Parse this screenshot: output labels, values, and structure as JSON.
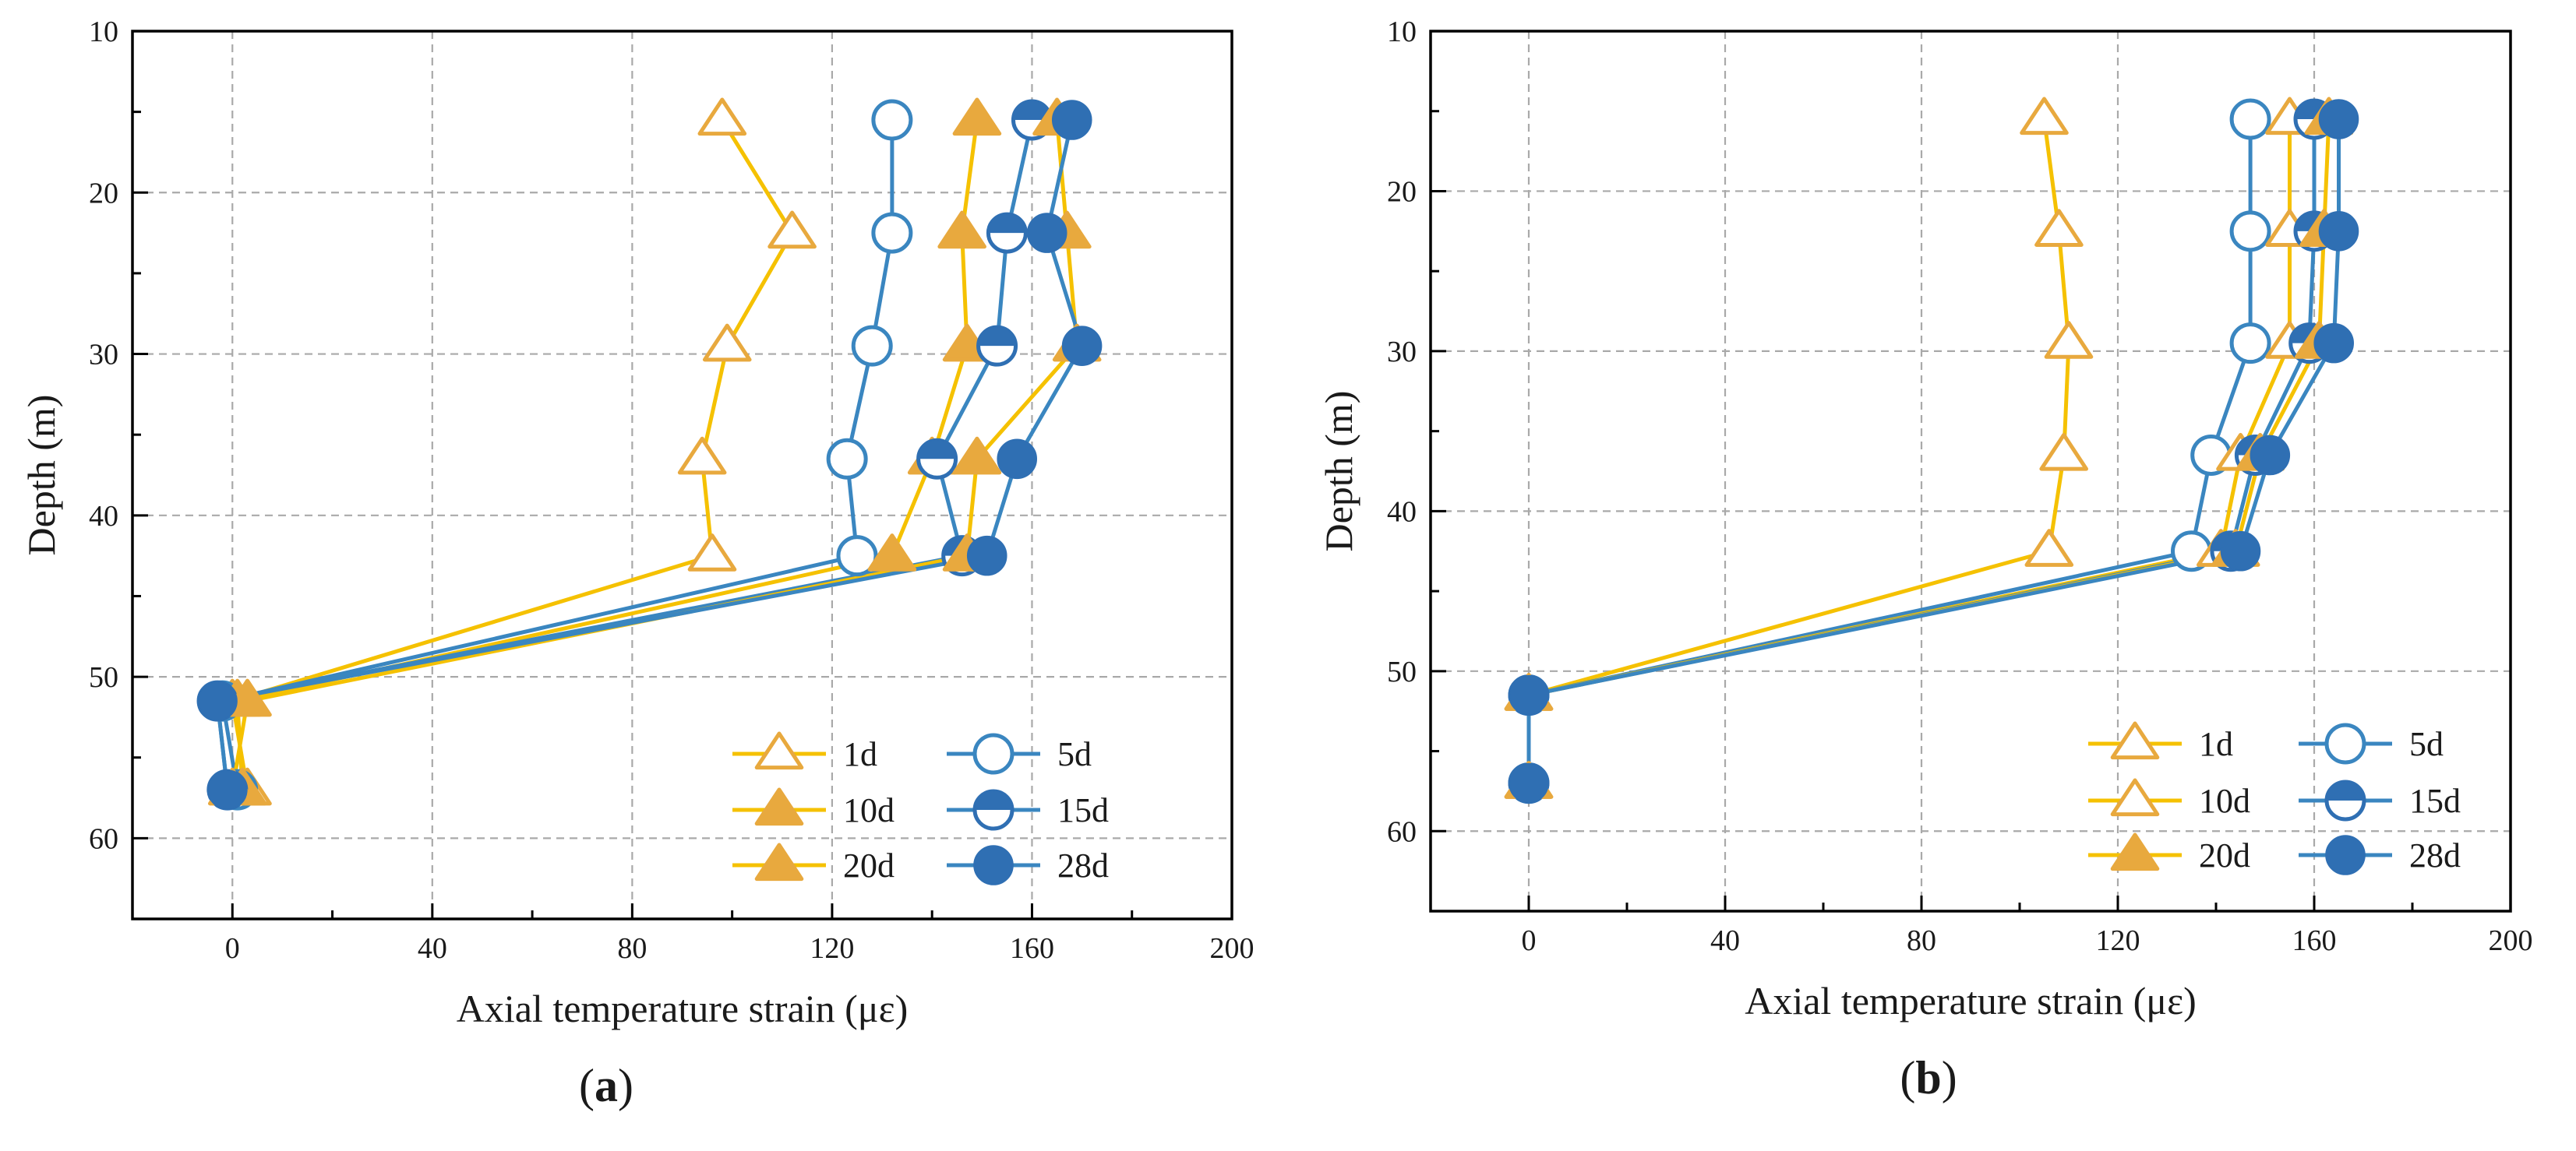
{
  "colors": {
    "yellow": "#f5c100",
    "orange": "#e8a93e",
    "blue": "#3a86c0",
    "dot_blue": "#2f6fb3",
    "grid": "#a9a9a9",
    "axis": "#000000"
  },
  "chart_data": [
    {
      "type": "line",
      "panel_label": "a",
      "xlabel": "Axial temperature strain (με)",
      "ylabel": "Depth (m)",
      "xlim": [
        -20,
        200
      ],
      "ylim": [
        10,
        65
      ],
      "y_inverted": true,
      "x_ticks": [
        "0",
        "40",
        "80",
        "120",
        "160",
        "200"
      ],
      "y_ticks": [
        "10",
        "20",
        "30",
        "40",
        "50",
        "60"
      ],
      "grid": true,
      "legend_position": "bottom-right",
      "series": [
        {
          "name": "1d",
          "line_color": "yellow",
          "marker": "triangle-open",
          "marker_color": "orange",
          "points": [
            [
              98,
              15.5
            ],
            [
              112,
              22.5
            ],
            [
              99,
              29.5
            ],
            [
              94,
              36.5
            ],
            [
              96,
              42.5
            ],
            [
              0,
              51.5
            ],
            [
              3,
              57
            ]
          ]
        },
        {
          "name": "5d",
          "line_color": "blue",
          "marker": "circle-open",
          "marker_color": "blue",
          "points": [
            [
              132,
              15.5
            ],
            [
              132,
              22.5
            ],
            [
              128,
              29.5
            ],
            [
              123,
              36.5
            ],
            [
              125,
              42.5
            ],
            [
              -2,
              51.5
            ],
            [
              1,
              57
            ]
          ]
        },
        {
          "name": "10d",
          "line_color": "yellow",
          "marker": "triangle-filled",
          "marker_color": "orange",
          "points": [
            [
              149,
              15.5
            ],
            [
              146,
              22.5
            ],
            [
              147,
              29.5
            ],
            [
              140,
              36.5
            ],
            [
              132,
              42.5
            ],
            [
              1,
              51.5
            ],
            [
              2,
              57
            ]
          ]
        },
        {
          "name": "15d",
          "line_color": "blue",
          "marker": "circle-half",
          "marker_color": "dot_blue",
          "points": [
            [
              160,
              15.5
            ],
            [
              155,
              22.5
            ],
            [
              153,
              29.5
            ],
            [
              141,
              36.5
            ],
            [
              146,
              42.5
            ],
            [
              -3,
              51.5
            ],
            [
              -1,
              57
            ]
          ]
        },
        {
          "name": "20d",
          "line_color": "yellow",
          "marker": "triangle-filled",
          "marker_color": "orange",
          "points": [
            [
              165,
              15.5
            ],
            [
              167,
              22.5
            ],
            [
              169,
              29.5
            ],
            [
              149,
              36.5
            ],
            [
              147,
              42.5
            ],
            [
              3,
              51.5
            ],
            [
              0,
              57
            ]
          ]
        },
        {
          "name": "28d",
          "line_color": "blue",
          "marker": "circle-filled",
          "marker_color": "dot_blue",
          "points": [
            [
              168,
              15.5
            ],
            [
              163,
              22.5
            ],
            [
              170,
              29.5
            ],
            [
              157,
              36.5
            ],
            [
              151,
              42.5
            ],
            [
              -3,
              51.5
            ],
            [
              -1,
              57
            ]
          ]
        }
      ]
    },
    {
      "type": "line",
      "panel_label": "b",
      "xlabel": "Axial temperature strain (με)",
      "ylabel": "Depth (m)",
      "xlim": [
        -20,
        200
      ],
      "ylim": [
        10,
        65
      ],
      "y_inverted": true,
      "x_ticks": [
        "0",
        "40",
        "80",
        "120",
        "160",
        "200"
      ],
      "y_ticks": [
        "10",
        "20",
        "30",
        "40",
        "50",
        "60"
      ],
      "grid": true,
      "legend_position": "bottom-right",
      "series": [
        {
          "name": "1d",
          "line_color": "yellow",
          "marker": "triangle-open",
          "marker_color": "orange",
          "points": [
            [
              105,
              15.5
            ],
            [
              108,
              22.5
            ],
            [
              110,
              29.5
            ],
            [
              109,
              36.5
            ],
            [
              106,
              42.5
            ],
            [
              0,
              51.5
            ],
            [
              0,
              57
            ]
          ]
        },
        {
          "name": "5d",
          "line_color": "blue",
          "marker": "circle-open",
          "marker_color": "blue",
          "points": [
            [
              147,
              15.5
            ],
            [
              147,
              22.5
            ],
            [
              147,
              29.5
            ],
            [
              139,
              36.5
            ],
            [
              135,
              42.5
            ],
            [
              0,
              51.5
            ],
            [
              0,
              57
            ]
          ]
        },
        {
          "name": "10d",
          "line_color": "yellow",
          "marker": "triangle-open",
          "marker_color": "orange",
          "points": [
            [
              155,
              15.5
            ],
            [
              155,
              22.5
            ],
            [
              155,
              29.5
            ],
            [
              145,
              36.5
            ],
            [
              141,
              42.5
            ],
            [
              0,
              51.5
            ],
            [
              0,
              57
            ]
          ]
        },
        {
          "name": "15d",
          "line_color": "blue",
          "marker": "circle-half",
          "marker_color": "dot_blue",
          "points": [
            [
              160,
              15.5
            ],
            [
              160,
              22.5
            ],
            [
              159,
              29.5
            ],
            [
              148,
              36.5
            ],
            [
              143,
              42.5
            ],
            [
              0,
              51.5
            ],
            [
              0,
              57
            ]
          ]
        },
        {
          "name": "20d",
          "line_color": "yellow",
          "marker": "triangle-filled",
          "marker_color": "orange",
          "points": [
            [
              163,
              15.5
            ],
            [
              162,
              22.5
            ],
            [
              161,
              29.5
            ],
            [
              149,
              36.5
            ],
            [
              144,
              42.5
            ],
            [
              0,
              51.5
            ],
            [
              0,
              57
            ]
          ]
        },
        {
          "name": "28d",
          "line_color": "blue",
          "marker": "circle-filled",
          "marker_color": "dot_blue",
          "points": [
            [
              165,
              15.5
            ],
            [
              165,
              22.5
            ],
            [
              164,
              29.5
            ],
            [
              151,
              36.5
            ],
            [
              145,
              42.5
            ],
            [
              0,
              51.5
            ],
            [
              0,
              57
            ]
          ]
        }
      ]
    }
  ]
}
